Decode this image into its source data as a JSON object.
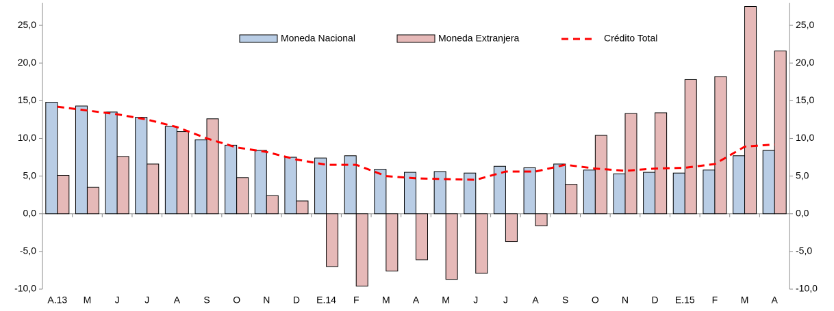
{
  "chart_data": {
    "type": "bar",
    "categories": [
      "A.13",
      "M",
      "J",
      "J",
      "A",
      "S",
      "O",
      "N",
      "D",
      "E.14",
      "F",
      "M",
      "A",
      "M",
      "J",
      "J",
      "A",
      "S",
      "O",
      "N",
      "D",
      "E.15",
      "F",
      "M",
      "A"
    ],
    "series": [
      {
        "name": "Moneda Nacional",
        "type": "bar",
        "color": "#b9cde5",
        "values": [
          14.8,
          14.3,
          13.5,
          12.8,
          11.6,
          9.8,
          9.1,
          8.4,
          7.5,
          7.4,
          7.7,
          5.9,
          5.5,
          5.6,
          5.4,
          6.3,
          6.1,
          6.6,
          5.8,
          5.3,
          5.5,
          5.4,
          5.8,
          7.7,
          8.4
        ]
      },
      {
        "name": "Moneda Extranjera",
        "type": "bar",
        "color": "#e6b9b8",
        "values": [
          5.1,
          3.5,
          7.6,
          6.6,
          10.9,
          12.6,
          4.8,
          2.4,
          1.7,
          -7.0,
          -9.6,
          -7.6,
          -6.1,
          -8.7,
          -7.9,
          -3.7,
          -1.6,
          3.9,
          10.4,
          13.3,
          13.4,
          17.8,
          18.2,
          27.5,
          21.6
        ]
      },
      {
        "name": "Crédito Total",
        "type": "line",
        "color": "#ff0000",
        "values": [
          14.2,
          13.7,
          13.2,
          12.5,
          11.5,
          10.0,
          8.8,
          8.2,
          7.2,
          6.5,
          6.5,
          5.0,
          4.7,
          4.6,
          4.5,
          5.6,
          5.6,
          6.5,
          6.0,
          5.7,
          6.0,
          6.1,
          6.6,
          8.9,
          9.2
        ]
      }
    ],
    "ylim": [
      -10,
      28
    ],
    "yticks": [
      {
        "value": -10,
        "label": "-10,0"
      },
      {
        "value": -5,
        "label": "-5,0"
      },
      {
        "value": 0,
        "label": "0,0"
      },
      {
        "value": 5,
        "label": "5,0"
      },
      {
        "value": 10,
        "label": "10,0"
      },
      {
        "value": 15,
        "label": "15,0"
      },
      {
        "value": 20,
        "label": "20,0"
      },
      {
        "value": 25,
        "label": "25,0"
      }
    ]
  }
}
